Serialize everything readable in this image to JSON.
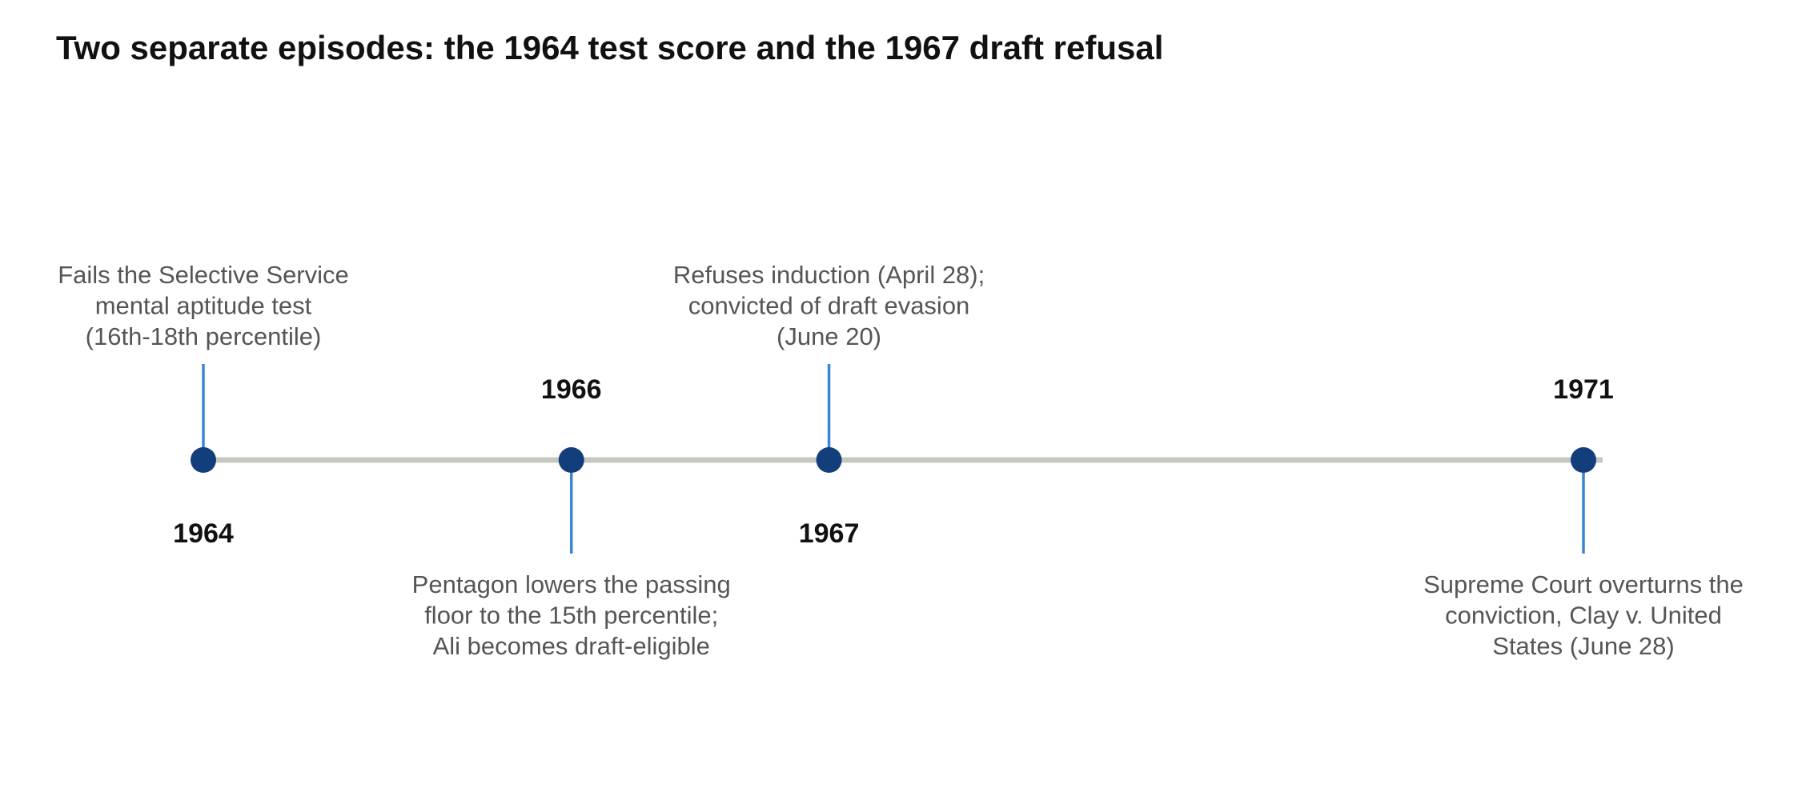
{
  "title": "Two separate episodes: the 1964 test score and the 1967 draft refusal",
  "colors": {
    "axis_line": "#c7c7c2",
    "marker": "#123f7c",
    "connector": "#3b86d4",
    "year_text": "#111111",
    "description_text": "#555555"
  },
  "events": [
    {
      "year": "1964",
      "year_value": 1964.0,
      "side": "above",
      "description": [
        "Fails the Selective Service",
        "mental aptitude test",
        "(16th-18th percentile)"
      ]
    },
    {
      "year": "1966",
      "year_value": 1966.0,
      "side": "below",
      "description": [
        "Pentagon lowers the passing",
        "floor to the 15th percentile;",
        "Ali becomes draft-eligible"
      ]
    },
    {
      "year": "1967",
      "year_value": 1967.4,
      "side": "above",
      "description": [
        "Refuses induction (April 28);",
        "convicted of draft evasion",
        "(June 20)"
      ]
    },
    {
      "year": "1971",
      "year_value": 1971.5,
      "side": "below",
      "description": [
        "Supreme Court overturns the",
        "conviction, Clay v. United",
        "States (June 28)"
      ]
    }
  ]
}
